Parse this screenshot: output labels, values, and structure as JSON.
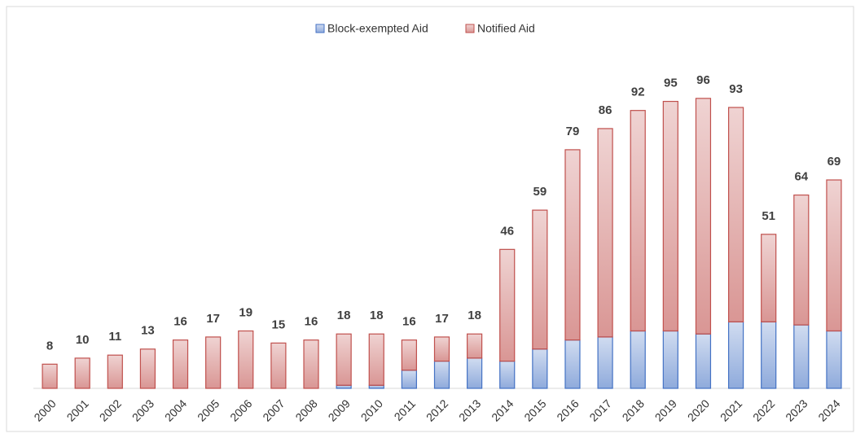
{
  "chart_data": {
    "type": "stacked_bar",
    "categories": [
      "2000",
      "2001",
      "2002",
      "2003",
      "2004",
      "2005",
      "2006",
      "2007",
      "2008",
      "2009",
      "2010",
      "2011",
      "2012",
      "2013",
      "2014",
      "2015",
      "2016",
      "2017",
      "2018",
      "2019",
      "2020",
      "2021",
      "2022",
      "2023",
      "2024"
    ],
    "series": [
      {
        "name": "Block-exempted Aid",
        "color": "#4472c4",
        "values": [
          0,
          0,
          0,
          0,
          0,
          0,
          0,
          0,
          0,
          1,
          1,
          6,
          9,
          10,
          9,
          13,
          16,
          17,
          19,
          19,
          18,
          22,
          22,
          21,
          19
        ]
      },
      {
        "name": "Notified Aid",
        "color": "#c0504d",
        "values": [
          8,
          10,
          11,
          13,
          16,
          17,
          19,
          15,
          16,
          17,
          17,
          10,
          8,
          8,
          37,
          46,
          63,
          69,
          73,
          76,
          78,
          71,
          29,
          43,
          50
        ]
      }
    ],
    "totals": [
      8,
      10,
      11,
      13,
      16,
      17,
      19,
      15,
      16,
      18,
      18,
      16,
      17,
      18,
      46,
      59,
      79,
      86,
      92,
      95,
      96,
      93,
      51,
      64,
      69
    ],
    "ylim": [
      0,
      100
    ],
    "legend": "top"
  }
}
